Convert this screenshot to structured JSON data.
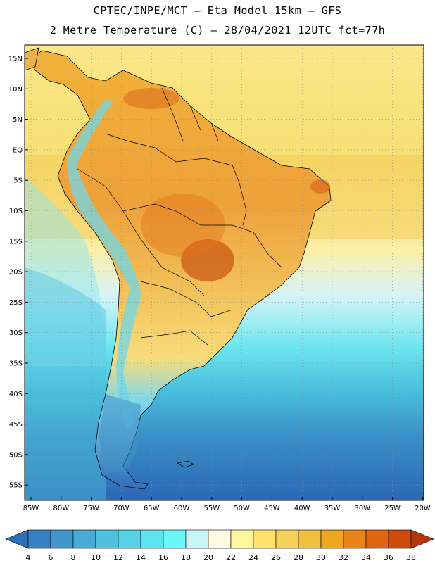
{
  "header": {
    "line1": "CPTEC/INPE/MCT –  Eta Model 15km – GFS",
    "line2": "2 Metre Temperature (C) – 28/04/2021 12UTC fct=77h"
  },
  "map": {
    "lat_labels": [
      "15N",
      "10N",
      "5N",
      "EQ",
      "5S",
      "10S",
      "15S",
      "20S",
      "25S",
      "30S",
      "35S",
      "40S",
      "45S",
      "50S",
      "55S"
    ],
    "lon_labels": [
      "85W",
      "80W",
      "75W",
      "70W",
      "65W",
      "60W",
      "55W",
      "50W",
      "45W",
      "40W",
      "35W",
      "30W",
      "25W",
      "20W"
    ]
  },
  "colorbar": {
    "levels": [
      "4",
      "6",
      "8",
      "10",
      "12",
      "14",
      "16",
      "18",
      "20",
      "22",
      "24",
      "26",
      "28",
      "30",
      "32",
      "34",
      "36",
      "38"
    ],
    "colors": [
      "#2c6fbb",
      "#3680c2",
      "#3f96cc",
      "#47abd6",
      "#4fc0de",
      "#55d2e6",
      "#5ee4ee",
      "#6af7f7",
      "#c8f5f7",
      "#fffbe0",
      "#fff59e",
      "#fbe36d",
      "#f5d15a",
      "#efbf3f",
      "#f0a71f",
      "#e88417",
      "#df6512",
      "#cf4b0b",
      "#b8340a"
    ]
  }
}
